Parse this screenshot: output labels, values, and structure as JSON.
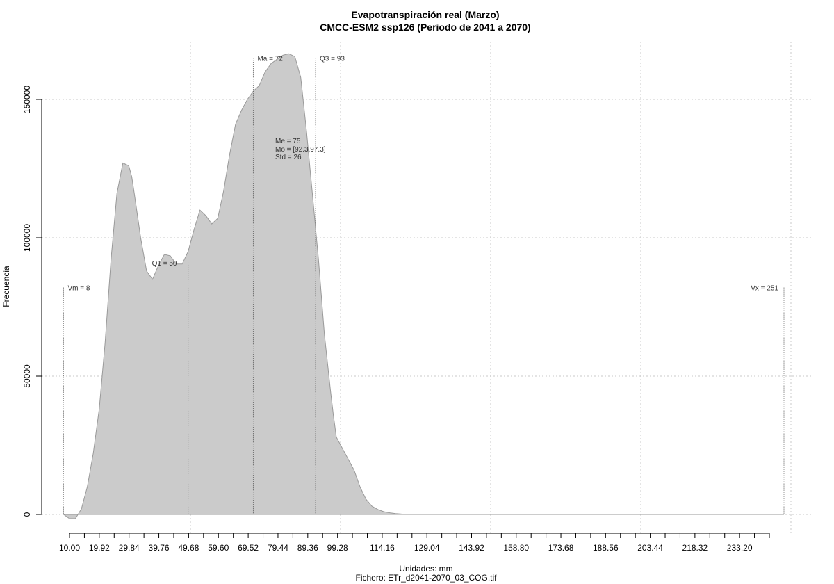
{
  "chart_data": {
    "type": "area",
    "title": "Evapotranspiración real (Marzo)",
    "subtitle": "CMCC-ESM2 ssp126 (Periodo de 2041 a 2070)",
    "xlabel": "Unidades: mm",
    "ylabel": "Frecuencia",
    "footer": "Fichero: ETr_d2041-2070_03_COG.tif",
    "xlim": [
      10,
      251
    ],
    "ylim": [
      0,
      165000
    ],
    "grid": true,
    "fill_color": "#cbcbcb",
    "line_color": "#999999",
    "x_ticks": [
      "10.00",
      "19.92",
      "29.84",
      "39.76",
      "49.68",
      "59.60",
      "69.52",
      "79.44",
      "89.36",
      "99.28",
      "114.16",
      "129.04",
      "143.92",
      "158.80",
      "173.68",
      "188.56",
      "203.44",
      "218.32",
      "233.20"
    ],
    "y_ticks": [
      "0",
      "50000",
      "100000",
      "150000"
    ],
    "x": [
      8,
      10,
      12,
      14,
      16,
      18,
      20,
      22,
      24,
      26,
      28,
      30,
      31,
      32,
      34,
      36,
      38,
      40,
      42,
      44,
      46,
      48,
      50,
      52,
      54,
      56,
      58,
      60,
      62,
      64,
      66,
      68,
      70,
      72,
      74,
      76,
      78,
      80,
      82,
      84,
      86,
      88,
      90,
      92,
      94,
      96,
      98,
      99,
      100,
      102,
      104,
      106,
      108,
      110,
      112,
      114,
      116,
      118,
      120,
      122,
      124,
      126,
      128,
      130,
      134,
      138,
      142,
      146,
      150,
      160,
      180,
      200,
      220,
      251
    ],
    "y": [
      0,
      -1500,
      -1500,
      2000,
      10000,
      22000,
      38000,
      62000,
      92000,
      116000,
      127000,
      126000,
      122000,
      115000,
      100000,
      88000,
      85000,
      90000,
      94000,
      93500,
      90500,
      90500,
      95000,
      103000,
      110000,
      108000,
      105000,
      107000,
      117000,
      130000,
      141000,
      146000,
      150000,
      153000,
      155000,
      160000,
      163000,
      164500,
      166000,
      166500,
      165500,
      158000,
      138000,
      115000,
      92000,
      65000,
      45000,
      36000,
      28000,
      24000,
      20000,
      16000,
      10000,
      5500,
      3000,
      1800,
      1000,
      600,
      300,
      150,
      100,
      60,
      30,
      0,
      0,
      0,
      0,
      0,
      0,
      0,
      0,
      0,
      0,
      0
    ],
    "annotations": [
      {
        "label": "Vm = 8",
        "x": 8,
        "y": 82000
      },
      {
        "label": "Q1 = 50",
        "x": 50,
        "y": 91000
      },
      {
        "label": "Ma = 72",
        "x": 72,
        "y": 165000
      },
      {
        "label": "Q3 = 93",
        "x": 93,
        "y": 165000
      },
      {
        "label": "Vx = 251",
        "x": 251,
        "y": 82000
      }
    ],
    "stats": [
      "Me = 75",
      "Mo = [92.3,97.3]",
      "Std = 26"
    ]
  }
}
